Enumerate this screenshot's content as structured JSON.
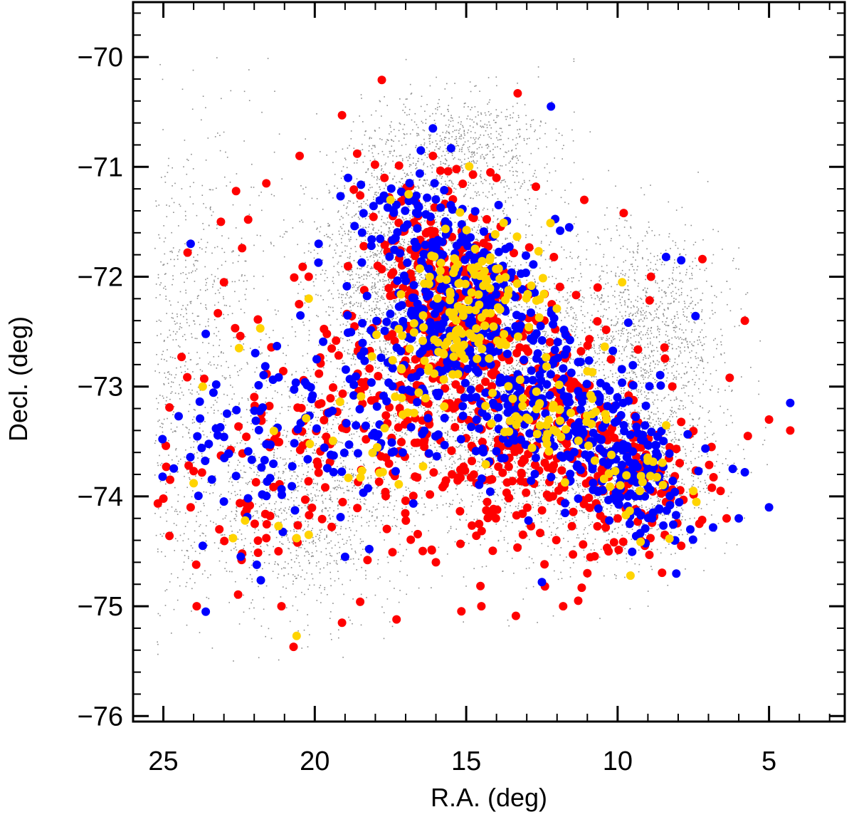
{
  "chart_data": {
    "type": "scatter",
    "title": "",
    "xlabel": "R.A. (deg)",
    "ylabel": "Decl. (deg)",
    "xlim": [
      26,
      2.5
    ],
    "ylim": [
      -76.05,
      -69.5
    ],
    "xticks": [
      25,
      20,
      15,
      10,
      5
    ],
    "yticks": [
      -70,
      -71,
      -72,
      -73,
      -74,
      -75,
      -76
    ],
    "xtick_labels": [
      "25",
      "20",
      "15",
      "10",
      "5"
    ],
    "ytick_labels": [
      "−70",
      "−71",
      "−72",
      "−73",
      "−74",
      "−75",
      "−76"
    ],
    "grid": false,
    "legend": "none",
    "colors": {
      "background": "#8a8a8a",
      "red": "#ff0000",
      "blue": "#0000ff",
      "yellow": "#ffd400"
    },
    "series": [
      {
        "name": "background field stars",
        "color": "#8a8a8a",
        "marker": "tiny dot",
        "density_regions": [
          {
            "ra": 24.5,
            "dec": -73.0,
            "ra_sigma": 3.3,
            "dec_sigma": 2.0,
            "weight": 0.8
          },
          {
            "ra": 20.0,
            "dec": -74.0,
            "ra_sigma": 2.5,
            "dec_sigma": 0.9,
            "weight": 0.6
          },
          {
            "ra": 17.5,
            "dec": -72.0,
            "ra_sigma": 2.0,
            "dec_sigma": 1.0,
            "weight": 1.0
          },
          {
            "ra": 15.0,
            "dec": -72.5,
            "ra_sigma": 2.5,
            "dec_sigma": 1.3,
            "weight": 1.2
          },
          {
            "ra": 12.5,
            "dec": -73.3,
            "ra_sigma": 3.0,
            "dec_sigma": 1.0,
            "weight": 1.0
          },
          {
            "ra": 9.0,
            "dec": -72.5,
            "ra_sigma": 2.2,
            "dec_sigma": 0.8,
            "weight": 0.6
          },
          {
            "ra": 9.5,
            "dec": -73.8,
            "ra_sigma": 2.4,
            "dec_sigma": 0.6,
            "weight": 0.6
          },
          {
            "ra": 15.0,
            "dec": -70.8,
            "ra_sigma": 2.5,
            "dec_sigma": 0.4,
            "weight": 0.3
          }
        ]
      },
      {
        "name": "red population",
        "color": "#ff0000",
        "marker": "filled circle",
        "points": [
          [
            13.3,
            -70.33
          ],
          [
            19.1,
            -70.53
          ],
          [
            20.5,
            -70.9
          ],
          [
            22.6,
            -71.22
          ],
          [
            23.1,
            -71.5
          ],
          [
            24.2,
            -71.78
          ],
          [
            22.2,
            -71.48
          ],
          [
            22.4,
            -71.74
          ],
          [
            21.6,
            -71.15
          ],
          [
            23.0,
            -72.05
          ],
          [
            20.4,
            -71.91
          ],
          [
            20.2,
            -72.0
          ],
          [
            24.4,
            -72.73
          ],
          [
            19.6,
            -72.52
          ],
          [
            24.8,
            -73.19
          ],
          [
            24.0,
            -73.77
          ],
          [
            24.1,
            -74.1
          ],
          [
            25.0,
            -74.02
          ],
          [
            24.8,
            -74.36
          ],
          [
            22.4,
            -74.52
          ],
          [
            21.6,
            -74.38
          ],
          [
            21.1,
            -75.0
          ],
          [
            23.9,
            -75.0
          ],
          [
            20.7,
            -75.37
          ],
          [
            19.1,
            -75.15
          ],
          [
            18.5,
            -74.96
          ],
          [
            17.3,
            -75.12
          ],
          [
            14.5,
            -75.0
          ],
          [
            16.0,
            -74.6
          ],
          [
            12.4,
            -74.82
          ],
          [
            11.8,
            -75.0
          ],
          [
            11.3,
            -74.95
          ],
          [
            11.0,
            -74.7
          ],
          [
            10.3,
            -74.5
          ],
          [
            7.9,
            -74.45
          ],
          [
            7.3,
            -74.25
          ],
          [
            5.8,
            -72.4
          ],
          [
            5.0,
            -73.3
          ],
          [
            4.3,
            -73.4
          ],
          [
            7.2,
            -71.84
          ],
          [
            9.8,
            -71.42
          ],
          [
            8.9,
            -72.0
          ],
          [
            14.2,
            -71.05
          ],
          [
            14.0,
            -71.1
          ],
          [
            15.6,
            -71.04
          ],
          [
            17.7,
            -71.1
          ],
          [
            18.5,
            -71.26
          ],
          [
            18.6,
            -70.88
          ],
          [
            16.1,
            -70.9
          ],
          [
            12.7,
            -71.18
          ],
          [
            11.1,
            -71.3
          ],
          [
            6.3,
            -72.92
          ],
          [
            5.7,
            -73.45
          ],
          [
            6.9,
            -73.55
          ],
          [
            6.6,
            -73.95
          ],
          [
            6.4,
            -74.2
          ],
          [
            8.4,
            -74.05
          ],
          [
            9.1,
            -74.45
          ],
          [
            10.0,
            -74.2
          ]
        ],
        "clusters": [
          {
            "ra": 15.3,
            "dec": -72.35,
            "ra_sigma": 1.3,
            "dec_sigma": 0.5,
            "count": 260
          },
          {
            "ra": 12.3,
            "dec": -73.25,
            "ra_sigma": 1.6,
            "dec_sigma": 0.45,
            "count": 180
          },
          {
            "ra": 9.6,
            "dec": -73.8,
            "ra_sigma": 1.2,
            "dec_sigma": 0.35,
            "count": 110
          },
          {
            "ra": 17.6,
            "dec": -73.2,
            "ra_sigma": 1.6,
            "dec_sigma": 0.5,
            "count": 100
          },
          {
            "ra": 21.8,
            "dec": -73.6,
            "ra_sigma": 1.7,
            "dec_sigma": 0.6,
            "count": 80
          },
          {
            "ra": 16.8,
            "dec": -71.6,
            "ra_sigma": 1.0,
            "dec_sigma": 0.3,
            "count": 50
          },
          {
            "ra": 14.0,
            "dec": -74.0,
            "ra_sigma": 2.2,
            "dec_sigma": 0.45,
            "count": 90
          }
        ]
      },
      {
        "name": "blue population",
        "color": "#0000ff",
        "marker": "filled circle",
        "points": [
          [
            12.2,
            -70.45
          ],
          [
            16.1,
            -70.65
          ],
          [
            16.5,
            -70.85
          ],
          [
            15.5,
            -70.83
          ],
          [
            18.9,
            -71.1
          ],
          [
            24.1,
            -71.7
          ],
          [
            8.4,
            -71.82
          ],
          [
            7.9,
            -71.85
          ],
          [
            11.6,
            -71.55
          ],
          [
            23.6,
            -72.52
          ],
          [
            23.7,
            -74.45
          ],
          [
            23.6,
            -75.05
          ],
          [
            19.0,
            -74.55
          ],
          [
            18.2,
            -74.48
          ],
          [
            12.5,
            -74.78
          ],
          [
            4.3,
            -73.15
          ],
          [
            5.0,
            -74.1
          ],
          [
            6.0,
            -74.2
          ],
          [
            7.6,
            -74.3
          ],
          [
            8.1,
            -74.4
          ],
          [
            9.1,
            -74.0
          ],
          [
            9.6,
            -74.25
          ],
          [
            6.2,
            -73.75
          ],
          [
            5.8,
            -73.78
          ],
          [
            11.3,
            -74.02
          ]
        ],
        "clusters": [
          {
            "ra": 15.0,
            "dec": -72.3,
            "ra_sigma": 1.2,
            "dec_sigma": 0.45,
            "count": 300
          },
          {
            "ra": 12.5,
            "dec": -73.2,
            "ra_sigma": 1.5,
            "dec_sigma": 0.4,
            "count": 160
          },
          {
            "ra": 10.0,
            "dec": -73.55,
            "ra_sigma": 1.0,
            "dec_sigma": 0.3,
            "count": 110
          },
          {
            "ra": 8.8,
            "dec": -73.95,
            "ra_sigma": 0.7,
            "dec_sigma": 0.25,
            "count": 50
          },
          {
            "ra": 17.5,
            "dec": -73.1,
            "ra_sigma": 1.5,
            "dec_sigma": 0.45,
            "count": 90
          },
          {
            "ra": 21.5,
            "dec": -73.5,
            "ra_sigma": 1.7,
            "dec_sigma": 0.5,
            "count": 85
          },
          {
            "ra": 16.9,
            "dec": -71.45,
            "ra_sigma": 0.9,
            "dec_sigma": 0.25,
            "count": 45
          }
        ]
      },
      {
        "name": "yellow population",
        "color": "#ffd400",
        "marker": "filled circle",
        "points": [
          [
            20.6,
            -75.27
          ],
          [
            20.2,
            -74.35
          ],
          [
            20.6,
            -74.38
          ],
          [
            21.2,
            -74.27
          ],
          [
            22.3,
            -74.22
          ],
          [
            22.7,
            -74.38
          ],
          [
            24.0,
            -73.88
          ],
          [
            9.85,
            -72.05
          ],
          [
            7.5,
            -73.95
          ],
          [
            7.4,
            -74.05
          ],
          [
            21.8,
            -72.47
          ],
          [
            20.2,
            -72.2
          ],
          [
            23.7,
            -73.0
          ],
          [
            22.5,
            -72.65
          ],
          [
            17.5,
            -71.3
          ],
          [
            16.9,
            -71.25
          ]
        ],
        "clusters": [
          {
            "ra": 14.5,
            "dec": -72.25,
            "ra_sigma": 1.1,
            "dec_sigma": 0.35,
            "count": 110
          },
          {
            "ra": 12.2,
            "dec": -73.2,
            "ra_sigma": 0.9,
            "dec_sigma": 0.3,
            "count": 55
          },
          {
            "ra": 16.0,
            "dec": -72.6,
            "ra_sigma": 0.8,
            "dec_sigma": 0.3,
            "count": 35
          },
          {
            "ra": 9.5,
            "dec": -73.8,
            "ra_sigma": 0.8,
            "dec_sigma": 0.3,
            "count": 25
          },
          {
            "ra": 18.0,
            "dec": -73.3,
            "ra_sigma": 1.3,
            "dec_sigma": 0.4,
            "count": 25
          }
        ]
      }
    ]
  }
}
